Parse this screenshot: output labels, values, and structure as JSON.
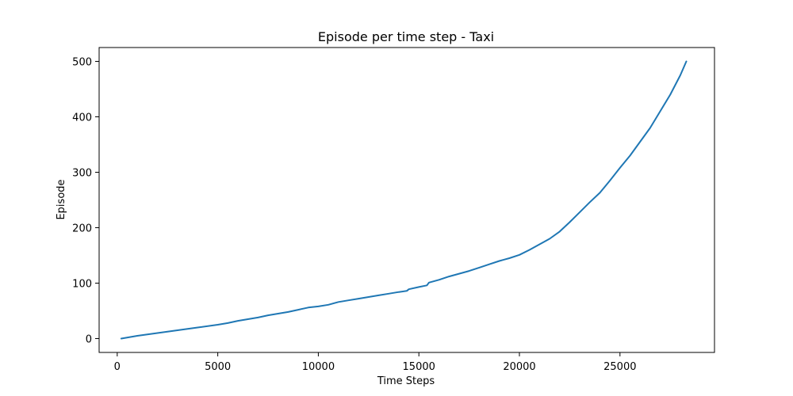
{
  "chart_data": {
    "type": "line",
    "title": "Episode per time step - Taxi",
    "xlabel": "Time Steps",
    "ylabel": "Episode",
    "xlim": [
      -900,
      29700
    ],
    "ylim": [
      -25,
      525
    ],
    "grid": false,
    "legend": "none",
    "xticks": [
      0,
      5000,
      10000,
      15000,
      20000,
      25000
    ],
    "yticks": [
      0,
      100,
      200,
      300,
      400,
      500
    ],
    "xtick_labels": [
      "0",
      "5000",
      "10000",
      "15000",
      "20000",
      "25000"
    ],
    "ytick_labels": [
      "0",
      "100",
      "200",
      "300",
      "400",
      "500"
    ],
    "series": [
      {
        "color": "#1f77b4",
        "x": [
          200,
          1000,
          2000,
          3000,
          4000,
          5000,
          5500,
          6000,
          6500,
          7000,
          7500,
          8000,
          8500,
          9000,
          9500,
          10000,
          10500,
          11000,
          11500,
          12000,
          12500,
          13000,
          13500,
          14000,
          14400,
          14500,
          15000,
          15400,
          15500,
          16000,
          16500,
          17000,
          17500,
          18000,
          18500,
          19000,
          19500,
          20000,
          20500,
          21000,
          21500,
          22000,
          22500,
          23000,
          23500,
          24000,
          24500,
          25000,
          25500,
          26000,
          26500,
          27000,
          27500,
          28000,
          28300
        ],
        "y": [
          0,
          5,
          10,
          15,
          20,
          25,
          28,
          32,
          35,
          38,
          42,
          45,
          48,
          52,
          56,
          58,
          61,
          66,
          69,
          72,
          75,
          78,
          81,
          84,
          86,
          89,
          93,
          96,
          101,
          106,
          112,
          117,
          122,
          128,
          134,
          140,
          145,
          151,
          160,
          170,
          180,
          193,
          210,
          228,
          246,
          263,
          285,
          308,
          330,
          355,
          380,
          410,
          440,
          475,
          500
        ]
      }
    ]
  }
}
